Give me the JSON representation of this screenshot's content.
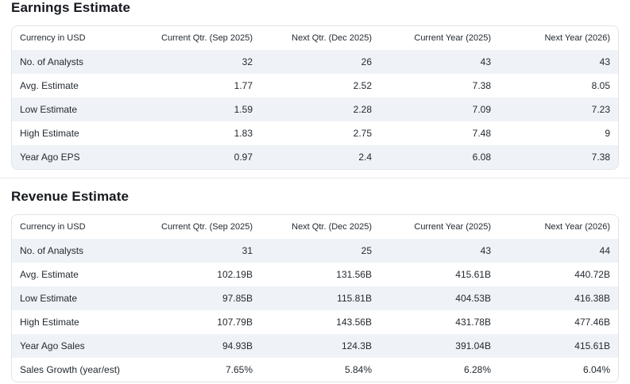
{
  "colors": {
    "stripe": "#eff3f7",
    "table_border": "#e0e4e9",
    "section_divider": "#e6eaee",
    "text": "#232a31",
    "title": "#16191f"
  },
  "sections": [
    {
      "title": "Earnings Estimate",
      "columns": [
        "Currency in USD",
        "Current Qtr. (Sep 2025)",
        "Next Qtr. (Dec 2025)",
        "Current Year (2025)",
        "Next Year (2026)"
      ],
      "rows": [
        {
          "label": "No. of Analysts",
          "values": [
            "32",
            "26",
            "43",
            "43"
          ]
        },
        {
          "label": "Avg. Estimate",
          "values": [
            "1.77",
            "2.52",
            "7.38",
            "8.05"
          ]
        },
        {
          "label": "Low Estimate",
          "values": [
            "1.59",
            "2.28",
            "7.09",
            "7.23"
          ]
        },
        {
          "label": "High Estimate",
          "values": [
            "1.83",
            "2.75",
            "7.48",
            "9"
          ]
        },
        {
          "label": "Year Ago EPS",
          "values": [
            "0.97",
            "2.4",
            "6.08",
            "7.38"
          ]
        }
      ]
    },
    {
      "title": "Revenue Estimate",
      "columns": [
        "Currency in USD",
        "Current Qtr. (Sep 2025)",
        "Next Qtr. (Dec 2025)",
        "Current Year (2025)",
        "Next Year (2026)"
      ],
      "rows": [
        {
          "label": "No. of Analysts",
          "values": [
            "31",
            "25",
            "43",
            "44"
          ]
        },
        {
          "label": "Avg. Estimate",
          "values": [
            "102.19B",
            "131.56B",
            "415.61B",
            "440.72B"
          ]
        },
        {
          "label": "Low Estimate",
          "values": [
            "97.85B",
            "115.81B",
            "404.53B",
            "416.38B"
          ]
        },
        {
          "label": "High Estimate",
          "values": [
            "107.79B",
            "143.56B",
            "431.78B",
            "477.46B"
          ]
        },
        {
          "label": "Year Ago Sales",
          "values": [
            "94.93B",
            "124.3B",
            "391.04B",
            "415.61B"
          ]
        },
        {
          "label": "Sales Growth (year/est)",
          "values": [
            "7.65%",
            "5.84%",
            "6.28%",
            "6.04%"
          ]
        }
      ]
    }
  ]
}
